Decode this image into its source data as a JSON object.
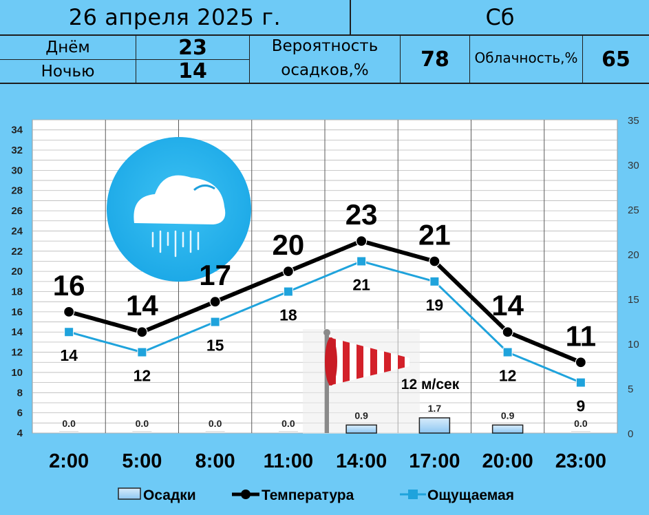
{
  "header": {
    "date": "26 апреля 2025 г.",
    "weekday": "Сб",
    "day_label": "Днём",
    "day_value": "23",
    "night_label": "Ночью",
    "night_value": "14",
    "precip_prob_label_1": "Вероятность",
    "precip_prob_label_2": "осадков,%",
    "precip_prob_value": "78",
    "cloud_label": "Облачность,%",
    "cloud_value": "65"
  },
  "chart_data": {
    "type": "line",
    "categories": [
      "2:00",
      "5:00",
      "8:00",
      "11:00",
      "14:00",
      "17:00",
      "20:00",
      "23:00"
    ],
    "series": [
      {
        "name": "Температура",
        "axis": "left",
        "values": [
          16,
          14,
          17,
          20,
          23,
          21,
          14,
          11
        ],
        "color": "#000000"
      },
      {
        "name": "Ощущаемая",
        "axis": "left",
        "values": [
          14,
          12,
          15,
          18,
          21,
          19,
          12,
          9
        ],
        "color": "#1fa3dc"
      },
      {
        "name": "Осадки",
        "axis": "right",
        "kind": "bar",
        "values": [
          0.0,
          0.0,
          0.0,
          0.0,
          0.9,
          1.7,
          0.9,
          0.0
        ],
        "labels": [
          "0.0",
          "0.0",
          "0.0",
          "0.0",
          "0.9",
          "1.7",
          "0.9",
          "0.0"
        ],
        "color": "#a9d4f5"
      }
    ],
    "left_axis": {
      "min": 4,
      "max": 35,
      "ticks": [
        4,
        6,
        8,
        10,
        12,
        14,
        16,
        18,
        20,
        22,
        24,
        26,
        28,
        30,
        32,
        34
      ]
    },
    "right_axis": {
      "min": 0,
      "max": 35,
      "ticks": [
        0,
        5,
        10,
        15,
        20,
        25,
        30,
        35
      ]
    },
    "wind_label": "12 м/сек",
    "legend": [
      "Осадки",
      "Температура",
      "Ощущаемая"
    ],
    "legend_placement": "bottom",
    "grid": true,
    "icons": [
      "rain-cloud-icon",
      "windsock-icon"
    ]
  }
}
